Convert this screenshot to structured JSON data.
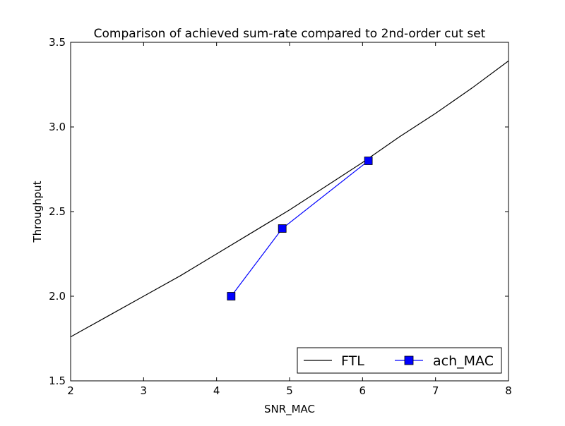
{
  "chart_data": {
    "type": "line",
    "title": "Comparison of achieved sum-rate compared to 2nd-order cut set",
    "xlabel": "SNR_MAC",
    "ylabel": "Throughput",
    "xlim": [
      2,
      8
    ],
    "ylim": [
      1.5,
      3.5
    ],
    "x_ticks": [
      "2",
      "3",
      "4",
      "5",
      "6",
      "7",
      "8"
    ],
    "y_ticks": [
      "1.5",
      "2.0",
      "2.5",
      "3.0",
      "3.5"
    ],
    "grid": false,
    "legend_position": "lower-right",
    "series": [
      {
        "name": "FTL",
        "color": "#000000",
        "marker": "none",
        "x": [
          2.0,
          2.5,
          3.0,
          3.5,
          4.0,
          4.5,
          5.0,
          5.5,
          6.0,
          6.5,
          7.0,
          7.5,
          8.0
        ],
        "y": [
          1.76,
          1.88,
          2.0,
          2.12,
          2.25,
          2.38,
          2.51,
          2.65,
          2.79,
          2.94,
          3.08,
          3.23,
          3.39
        ]
      },
      {
        "name": "ach_MAC",
        "color": "#0000ff",
        "marker": "square",
        "x": [
          4.2,
          4.9,
          6.08
        ],
        "y": [
          2.0,
          2.4,
          2.8
        ]
      }
    ]
  }
}
